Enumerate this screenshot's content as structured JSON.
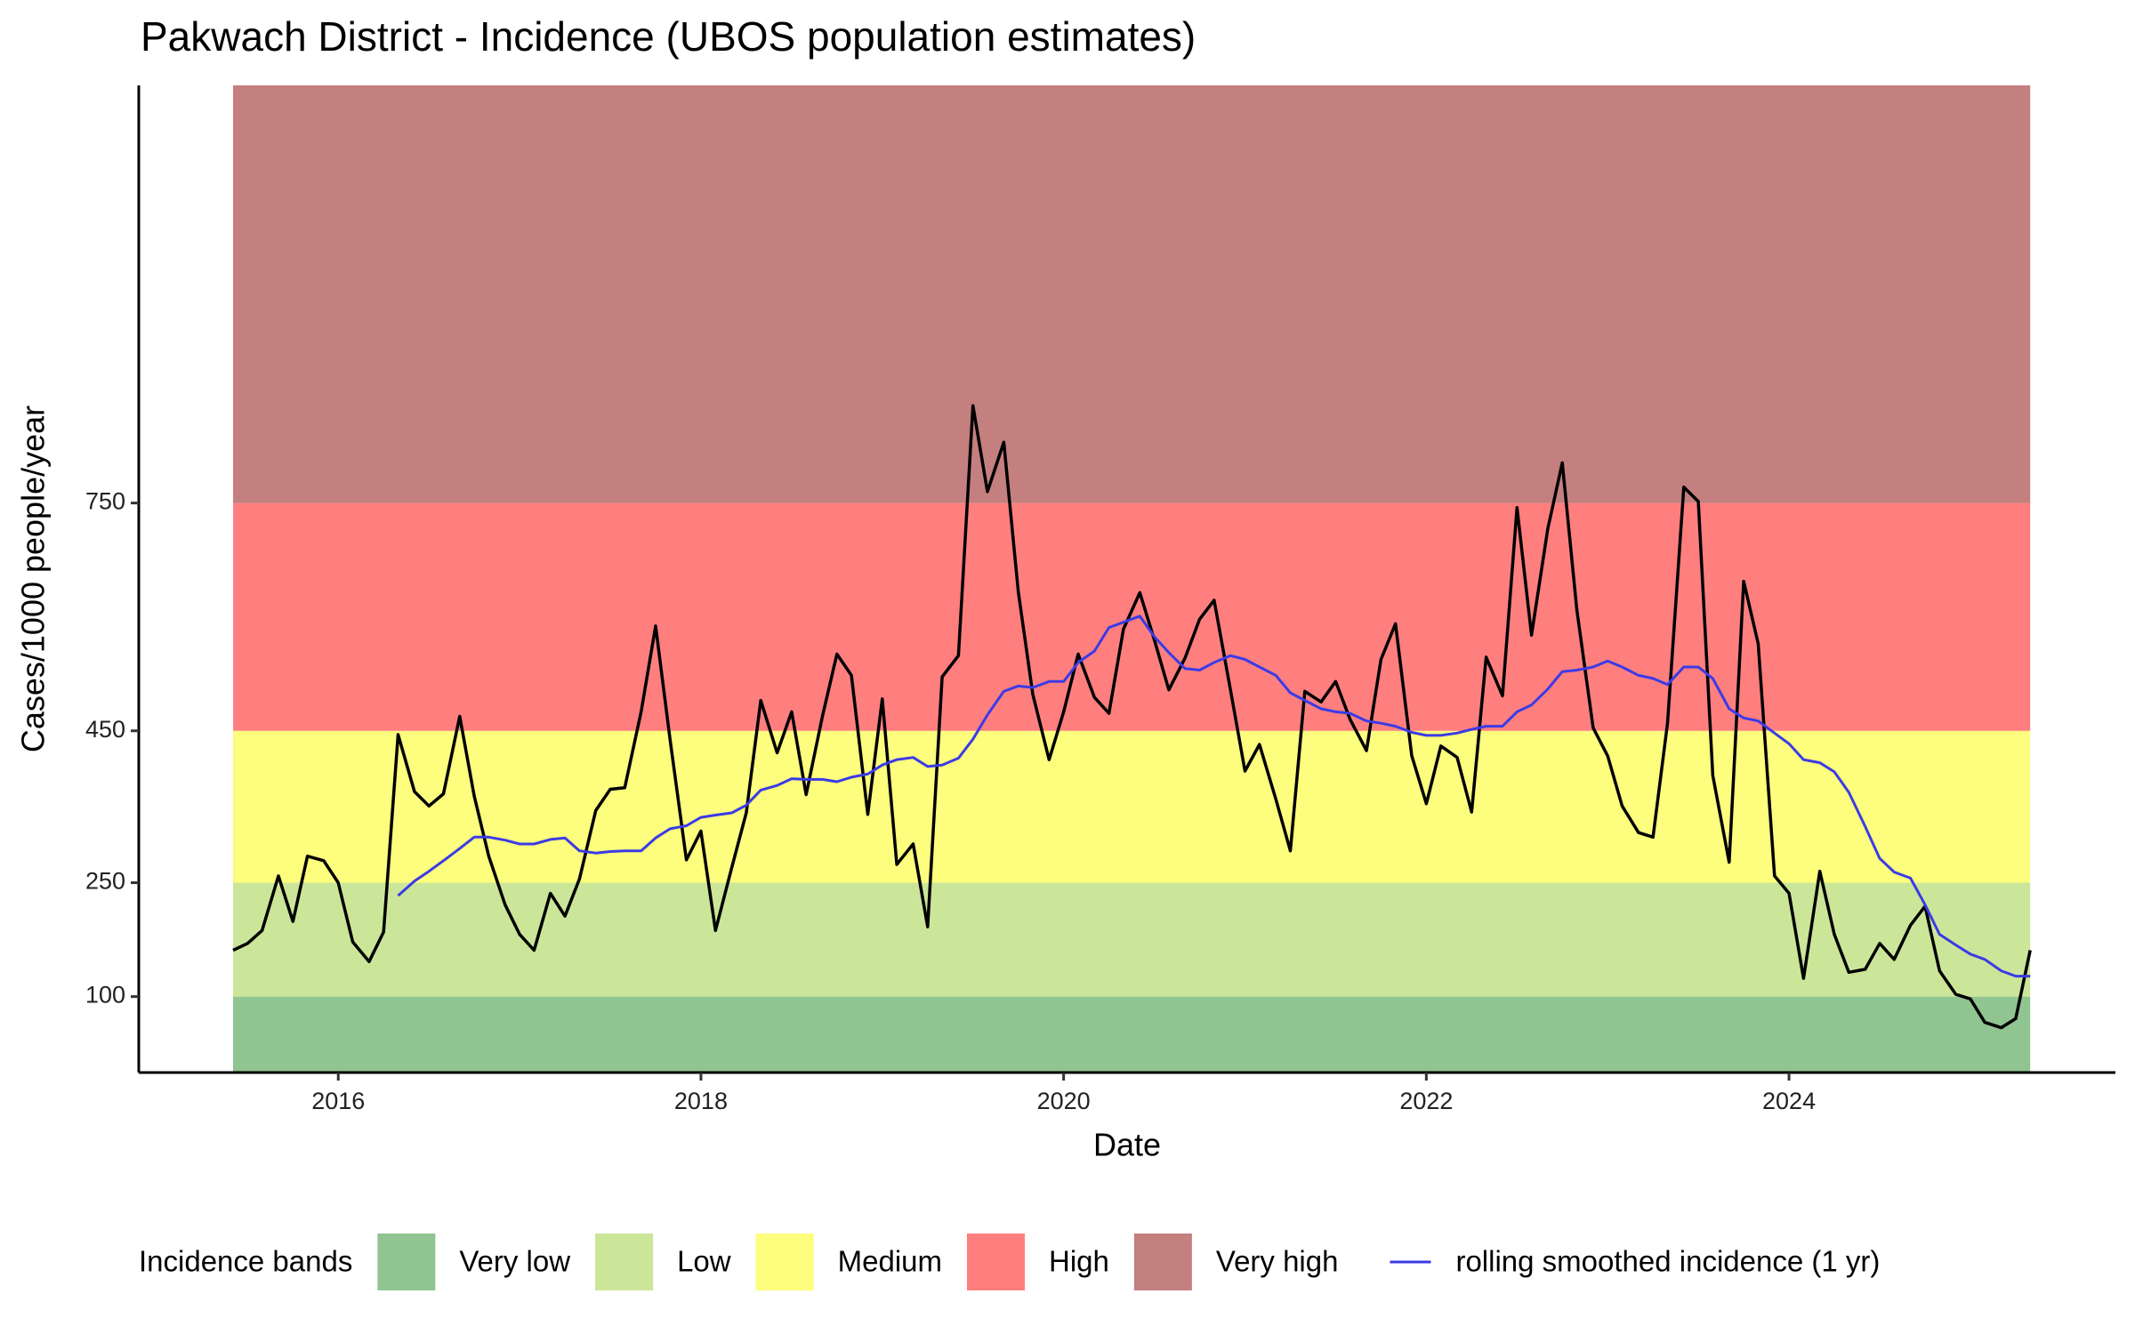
{
  "chart_data": {
    "type": "line",
    "title": "Pakwach District - Incidence (UBOS population estimates)",
    "x_label": "Date",
    "y_label": "Cases/1000 people/year",
    "xlim": [
      2014.9,
      2025.8
    ],
    "xticks": [
      2016,
      2018,
      2020,
      2022,
      2024
    ],
    "ylim": [
      0,
      1300
    ],
    "yticks": [
      100,
      250,
      450,
      750
    ],
    "bands_title": "Incidence bands",
    "bands": [
      {
        "name": "Very low",
        "color": "#90c490",
        "max": 100
      },
      {
        "name": "Low",
        "color": "#cce699",
        "max": 250
      },
      {
        "name": "Medium",
        "color": "#fdfd7e",
        "max": 450
      },
      {
        "name": "High",
        "color": "#ff7f7f",
        "max": 750
      },
      {
        "name": "Very high",
        "color": "#c47f7f"
      }
    ],
    "x": [
      2015.42,
      2015.5,
      2015.58,
      2015.67,
      2015.75,
      2015.83,
      2015.92,
      2016.0,
      2016.08,
      2016.17,
      2016.25,
      2016.33,
      2016.42,
      2016.5,
      2016.58,
      2016.67,
      2016.75,
      2016.83,
      2016.92,
      2017.0,
      2017.08,
      2017.17,
      2017.25,
      2017.33,
      2017.42,
      2017.5,
      2017.58,
      2017.67,
      2017.75,
      2017.83,
      2017.92,
      2018.0,
      2018.08,
      2018.17,
      2018.25,
      2018.33,
      2018.42,
      2018.5,
      2018.58,
      2018.67,
      2018.75,
      2018.83,
      2018.92,
      2019.0,
      2019.08,
      2019.17,
      2019.25,
      2019.33,
      2019.42,
      2019.5,
      2019.58,
      2019.67,
      2019.75,
      2019.83,
      2019.92,
      2020.0,
      2020.08,
      2020.17,
      2020.25,
      2020.33,
      2020.42,
      2020.5,
      2020.58,
      2020.67,
      2020.75,
      2020.83,
      2020.92,
      2021.0,
      2021.08,
      2021.17,
      2021.25,
      2021.33,
      2021.42,
      2021.5,
      2021.58,
      2021.67,
      2021.75,
      2021.83,
      2021.92,
      2022.0,
      2022.08,
      2022.17,
      2022.25,
      2022.33,
      2022.42,
      2022.5,
      2022.58,
      2022.67,
      2022.75,
      2022.83,
      2022.92,
      2023.0,
      2023.08,
      2023.17,
      2023.25,
      2023.33,
      2023.42,
      2023.5,
      2023.58,
      2023.67,
      2023.75,
      2023.83,
      2023.92,
      2024.0,
      2024.08,
      2024.17,
      2024.25,
      2024.33,
      2024.42,
      2024.5,
      2024.58,
      2024.67,
      2024.75,
      2024.83,
      2024.92,
      2025.0,
      2025.08,
      2025.17,
      2025.25,
      2025.33
    ],
    "series": [
      {
        "color": "#000000",
        "values": [
          161,
          170,
          187,
          259,
          199,
          285,
          279,
          250,
          172,
          146,
          185,
          445,
          370,
          351,
          367,
          469,
          364,
          285,
          221,
          182,
          161,
          236,
          206,
          255,
          345,
          373,
          375,
          475,
          588,
          438,
          280,
          318,
          187,
          270,
          342,
          490,
          421,
          475,
          366,
          469,
          551,
          523,
          340,
          492,
          274,
          301,
          192,
          521,
          549,
          878,
          765,
          830,
          633,
          498,
          412,
          475,
          551,
          494,
          473,
          584,
          632,
          570,
          504,
          546,
          597,
          622,
          504,
          397,
          432,
          360,
          292,
          502,
          488,
          515,
          465,
          424,
          544,
          591,
          417,
          354,
          430,
          415,
          343,
          547,
          496,
          744,
          576,
          716,
          803,
          609,
          454,
          417,
          351,
          316,
          310,
          460,
          771,
          752,
          391,
          277,
          647,
          565,
          259,
          236,
          124,
          265,
          182,
          132,
          136,
          170,
          149,
          194,
          219,
          134,
          103,
          97,
          66,
          59,
          71,
          161
        ]
      },
      {
        "name": "rolling smoothed incidence (1 yr)",
        "color": "#3b3be6",
        "values": [
          null,
          null,
          null,
          null,
          null,
          null,
          null,
          null,
          null,
          null,
          null,
          233,
          252,
          265,
          279,
          295,
          310,
          310,
          306,
          301,
          301,
          307,
          309,
          292,
          289,
          291,
          292,
          292,
          309,
          321,
          325,
          336,
          339,
          342,
          352,
          372,
          378,
          387,
          386,
          386,
          383,
          389,
          393,
          405,
          412,
          415,
          403,
          405,
          414,
          439,
          471,
          502,
          509,
          507,
          515,
          515,
          540,
          555,
          586,
          593,
          601,
          574,
          553,
          532,
          530,
          540,
          549,
          544,
          534,
          523,
          500,
          490,
          479,
          475,
          473,
          463,
          460,
          456,
          448,
          444,
          444,
          447,
          452,
          456,
          456,
          475,
          484,
          505,
          528,
          530,
          534,
          542,
          534,
          523,
          519,
          511,
          534,
          534,
          519,
          479,
          467,
          463,
          447,
          433,
          412,
          408,
          396,
          369,
          324,
          282,
          264,
          256,
          221,
          182,
          168,
          156,
          149,
          134,
          127,
          127
        ]
      }
    ]
  }
}
